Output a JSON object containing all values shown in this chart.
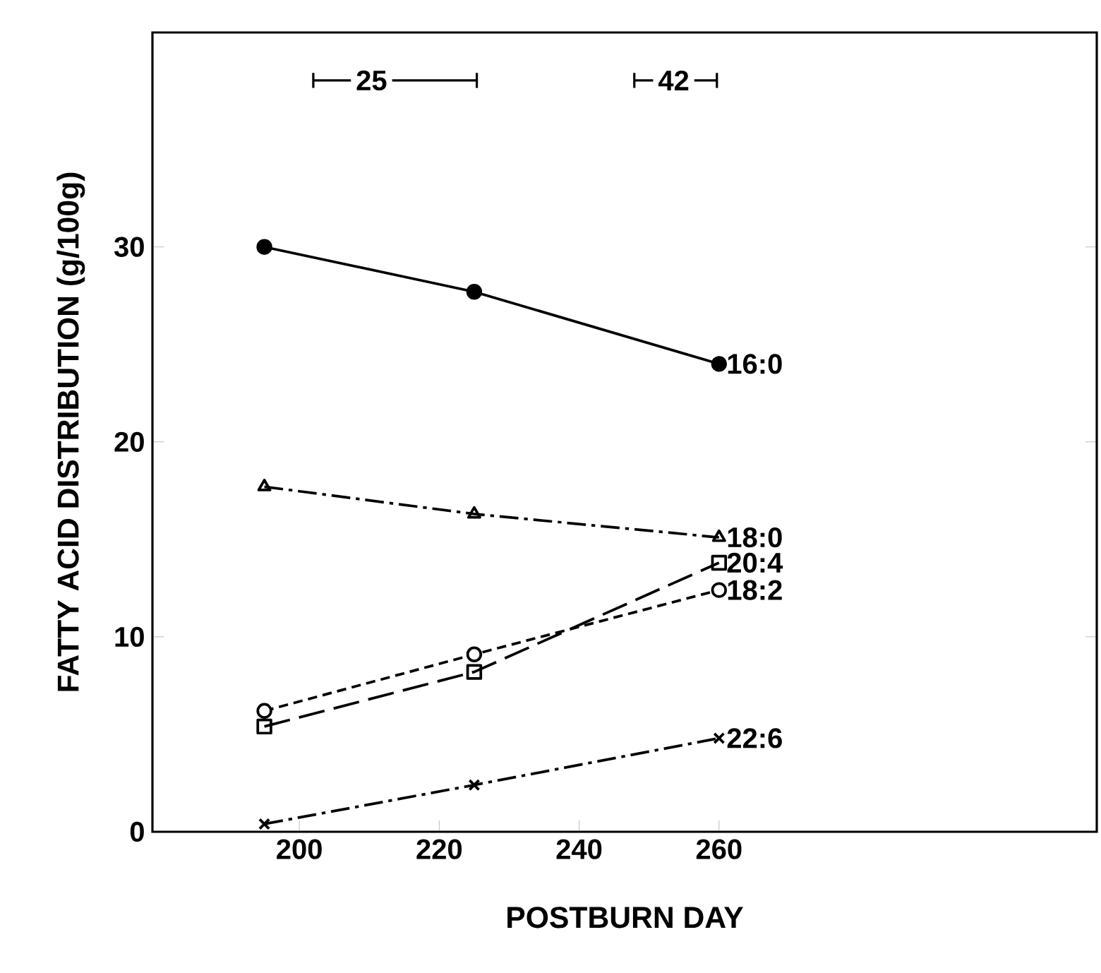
{
  "chart_data": {
    "type": "line",
    "xlabel": "POSTBURN DAY",
    "ylabel": "FATTY ACID DISTRIBUTION (g/100g)",
    "xlim": [
      179,
      314
    ],
    "ylim": [
      0,
      41
    ],
    "xticks": [
      200,
      220,
      240,
      260
    ],
    "yticks": [
      0,
      10,
      20,
      30
    ],
    "grid": false,
    "annotations": [
      "25",
      "42"
    ],
    "series": [
      {
        "name": "16:0",
        "color": "#000000",
        "x": [
          195,
          225,
          260
        ],
        "values": [
          30,
          27.7,
          24
        ],
        "marker": "circle",
        "line_style": "solid"
      },
      {
        "name": "18:0",
        "color": "#000000",
        "x": [
          195,
          225,
          260
        ],
        "values": [
          17.7,
          16.3,
          15.1
        ],
        "marker": "triangle",
        "line_style": "dashdot"
      },
      {
        "name": "20:4",
        "color": "#000000",
        "x": [
          195,
          225,
          260
        ],
        "values": [
          5.4,
          8.2,
          13.8
        ],
        "marker": "square",
        "line_style": "dashed"
      },
      {
        "name": "18:2",
        "color": "#000000",
        "x": [
          195,
          225,
          260
        ],
        "values": [
          6.2,
          9.1,
          12.4
        ],
        "marker": "circle",
        "line_style": "dotted"
      },
      {
        "name": "22:6",
        "color": "#000000",
        "x": [
          195,
          225,
          260
        ],
        "values": [
          0.4,
          2.4,
          4.8
        ],
        "marker": "cross",
        "line_style": "dashdot"
      }
    ]
  }
}
